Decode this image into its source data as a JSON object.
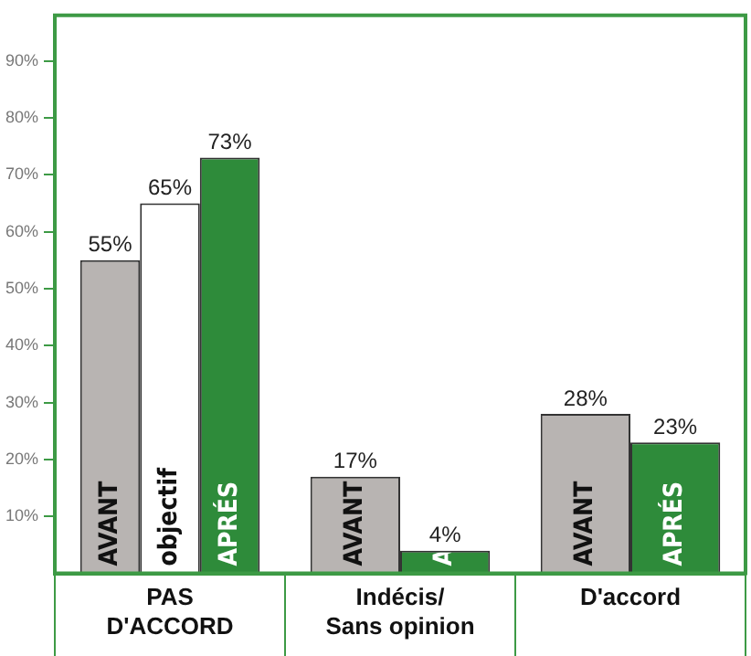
{
  "chart_data": {
    "type": "bar",
    "categories": [
      "PAS\nD'ACCORD",
      "Indécis/\nSans opinion",
      "D'accord"
    ],
    "series": [
      {
        "name": "AVANT",
        "color": "#b8b4b2",
        "values": [
          55,
          17,
          28
        ],
        "value_labels": [
          "55%",
          "17%",
          "28%"
        ]
      },
      {
        "name": "objectif",
        "color": "#ffffff",
        "values": [
          65,
          null,
          null
        ],
        "value_labels": [
          "65%",
          null,
          null
        ]
      },
      {
        "name": "APRÉS",
        "color": "#2e8b3a",
        "values": [
          73,
          4,
          23
        ],
        "value_labels": [
          "73%",
          "4%",
          "23%"
        ]
      }
    ],
    "ylim": [
      0,
      98
    ],
    "yticks": [
      {
        "value": 10,
        "label": "10%"
      },
      {
        "value": 20,
        "label": "20%"
      },
      {
        "value": 30,
        "label": "30%"
      },
      {
        "value": 40,
        "label": "40%"
      },
      {
        "value": 50,
        "label": "50%"
      },
      {
        "value": 60,
        "label": "60%"
      },
      {
        "value": 70,
        "label": "70%"
      },
      {
        "value": 80,
        "label": "80%"
      },
      {
        "value": 90,
        "label": "90%"
      }
    ],
    "grid": false,
    "legend": false
  }
}
